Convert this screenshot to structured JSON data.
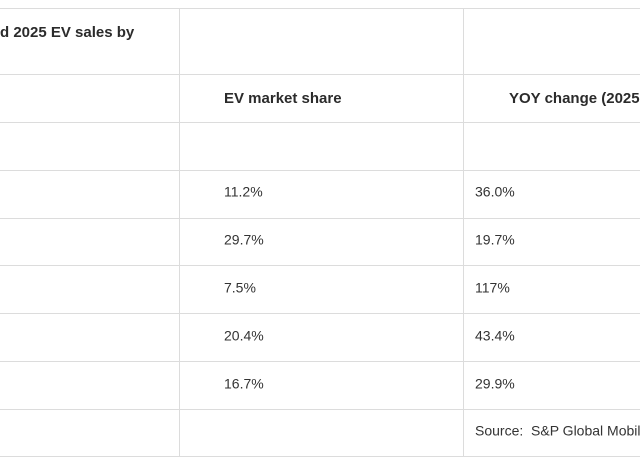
{
  "table": {
    "title": "d 2025 EV sales by",
    "headers": [
      "EV market share",
      "YOY change (2025"
    ],
    "rows": [
      [
        "11.2%",
        "36.0%"
      ],
      [
        "29.7%",
        "19.7%"
      ],
      [
        "7.5%",
        "117%"
      ],
      [
        "20.4%",
        "43.4%"
      ],
      [
        "16.7%",
        "29.9%"
      ]
    ],
    "source": "Source:  S&P Global Mobili"
  }
}
